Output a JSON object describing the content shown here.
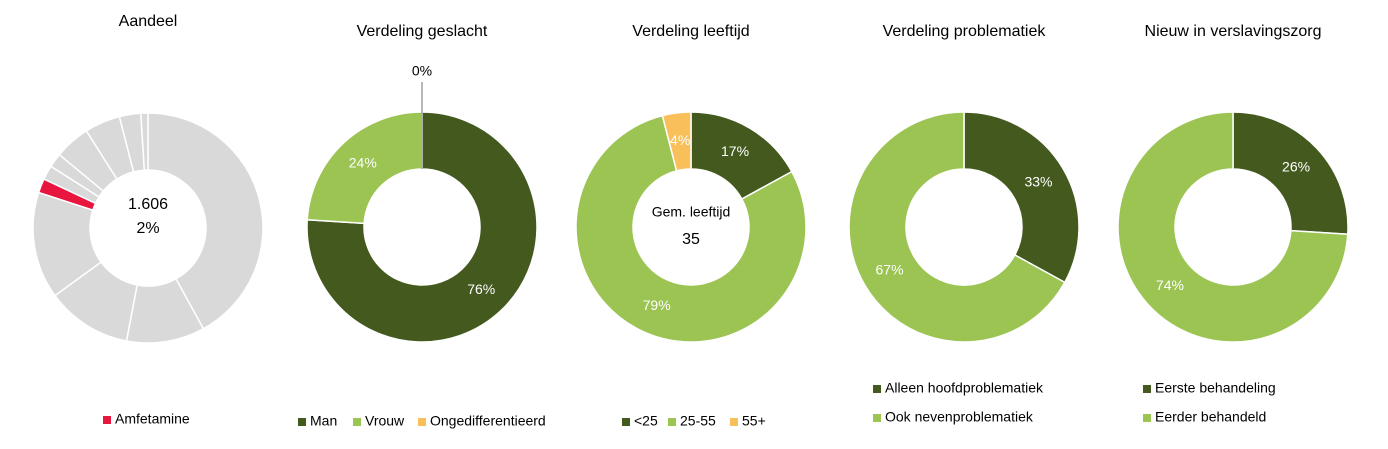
{
  "chart_data": [
    {
      "type": "donut",
      "title": "Aandeel",
      "categories": [
        null,
        null,
        null,
        null,
        "Amfetamine",
        null,
        null,
        null,
        null,
        null,
        null
      ],
      "values": [
        42,
        11,
        12,
        15,
        2,
        2,
        2,
        5,
        5,
        3,
        1
      ],
      "colors": [
        "#d9d9d9",
        "#d9d9d9",
        "#d9d9d9",
        "#d9d9d9",
        "#e8163f",
        "#d9d9d9",
        "#d9d9d9",
        "#d9d9d9",
        "#d9d9d9",
        "#d9d9d9",
        "#d9d9d9"
      ],
      "center_text": [
        "1.606",
        "2%"
      ]
    },
    {
      "type": "donut",
      "title": "Verdeling geslacht",
      "categories": [
        "Man",
        "Vrouw",
        "Ongedifferentieerd"
      ],
      "values": [
        76,
        24,
        0
      ],
      "value_labels": [
        "76%",
        "24%",
        "0%"
      ],
      "colors": [
        "#43591e",
        "#9bc453",
        "#f9bf5a"
      ]
    },
    {
      "type": "donut",
      "title": "Verdeling leeftijd",
      "categories": [
        "<25",
        "25-55",
        "55+"
      ],
      "values": [
        17,
        79,
        4
      ],
      "value_labels": [
        "17%",
        "79%",
        "4%"
      ],
      "colors": [
        "#43591e",
        "#9bc453",
        "#f9bf5a"
      ],
      "center_text": [
        "Gem. leeftijd",
        "35"
      ]
    },
    {
      "type": "donut",
      "title": "Verdeling problematiek",
      "categories": [
        "Alleen hoofdproblematiek",
        "Ook nevenproblematiek"
      ],
      "values": [
        33,
        67
      ],
      "value_labels": [
        "33%",
        "67%"
      ],
      "colors": [
        "#43591e",
        "#9bc453"
      ]
    },
    {
      "type": "donut",
      "title": "Nieuw in verslavingszorg",
      "categories": [
        "Eerste behandeling",
        "Eerder behandeld"
      ],
      "values": [
        26,
        74
      ],
      "value_labels": [
        "26%",
        "74%"
      ],
      "colors": [
        "#43591e",
        "#9bc453"
      ]
    }
  ]
}
